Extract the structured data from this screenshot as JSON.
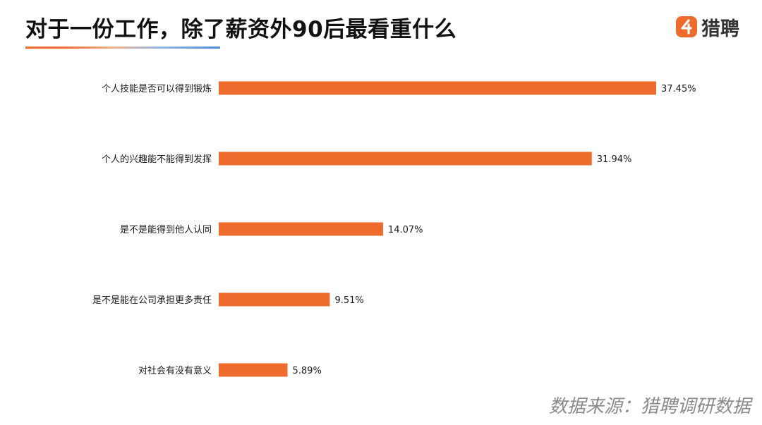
{
  "header": {
    "title": "对于一份工作，除了薪资外90后最看重什么"
  },
  "logo": {
    "brand_name": "猎聘",
    "icon": "liepin-logo-icon",
    "brand_color": "#ee6b2e"
  },
  "chart_data": {
    "type": "bar",
    "orientation": "horizontal",
    "categories": [
      "个人技能是否可以得到锻炼",
      "个人的兴趣能不能得到发挥",
      "是不是能得到他人认同",
      "是不是能在公司承担更多责任",
      "对社会有没有意义"
    ],
    "values": [
      37.45,
      31.94,
      14.07,
      9.51,
      5.89
    ],
    "value_labels": [
      "37.45%",
      "31.94%",
      "14.07%",
      "9.51%",
      "5.89%"
    ],
    "unit": "%",
    "xlim": [
      0,
      37.45
    ],
    "bar_color": "#ee6b2e",
    "grid": false,
    "legend": "none"
  },
  "footer": {
    "source": "数据来源：猎聘调研数据"
  }
}
